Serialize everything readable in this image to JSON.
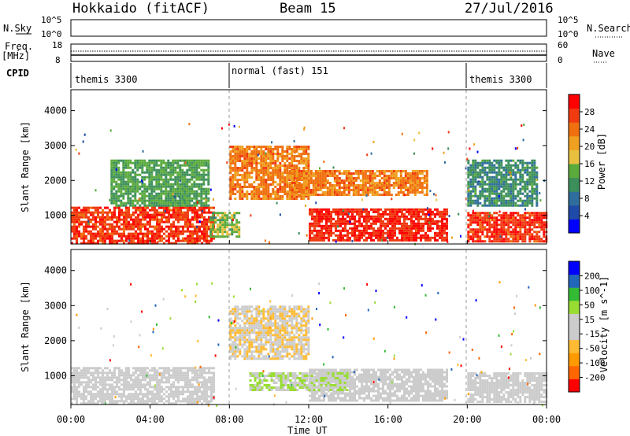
{
  "header": {
    "station": "Hokkaido (fitACF)",
    "beam": "Beam 15",
    "date": "27/Jul/2016"
  },
  "left_labels": {
    "nsky": "N.Sky",
    "freq": "Freq.",
    "freq_unit": "[MHz]",
    "cpid": "CPID"
  },
  "right_labels": {
    "nsearch": "N.Search",
    "nave": "Nave"
  },
  "noise_axis": {
    "left_ticks": [
      "10^5",
      "10^0"
    ],
    "right_ticks": [
      "10^5",
      "10^0"
    ]
  },
  "freq_axis": {
    "left_ticks": [
      "18",
      "8"
    ],
    "right_ticks": [
      "60",
      "0"
    ]
  },
  "cpid_segments": [
    {
      "label": "themis 3300",
      "start": "00:00",
      "end": "08:00"
    },
    {
      "label": "normal (fast) 151",
      "start": "08:00",
      "end": "20:00"
    },
    {
      "label": "themis 3300",
      "start": "20:00",
      "end": "00:00"
    }
  ],
  "x_axis": {
    "ticks": [
      "00:00",
      "04:00",
      "08:00",
      "12:00",
      "16:00",
      "20:00",
      "00:00"
    ],
    "label": "Time UT"
  },
  "y_axis": {
    "label": "Slant Range [km]",
    "ticks": [
      "1000",
      "2000",
      "3000",
      "4000"
    ]
  },
  "colors": {
    "power": [
      "#0000ff",
      "#1f4aa8",
      "#2f6e9c",
      "#3c8f5a",
      "#5aaa3c",
      "#e8c040",
      "#f0a020",
      "#f07010",
      "#f03a10",
      "#ff0000"
    ],
    "velocity": [
      "#ff0000",
      "#ff6600",
      "#ff9900",
      "#ffbb33",
      "#cccccc",
      "#cccccc",
      "#99dd33",
      "#33bb33",
      "#2266bb",
      "#0000ff"
    ]
  },
  "chart_data": [
    {
      "type": "heatmap",
      "title": "",
      "xlabel": "Time UT",
      "ylabel": "Slant Range [km]",
      "xlim_hours": [
        0,
        24
      ],
      "ylim_km": [
        180,
        4600
      ],
      "colorbar": {
        "label": "Power [dB]",
        "ticks": [
          "4",
          "8",
          "12",
          "16",
          "20",
          "24",
          "28"
        ],
        "range": [
          0,
          30
        ]
      },
      "regions": [
        {
          "t0": 0.0,
          "t1": 7.2,
          "r0": 200,
          "r1": 1250,
          "value": 26
        },
        {
          "t0": 7.0,
          "t1": 8.5,
          "r0": 400,
          "r1": 1100,
          "value": 14
        },
        {
          "t0": 8.0,
          "t1": 12.0,
          "r0": 1500,
          "r1": 3000,
          "value": 22
        },
        {
          "t0": 12.0,
          "t1": 19.0,
          "r0": 300,
          "r1": 1200,
          "value": 27
        },
        {
          "t0": 11.0,
          "t1": 18.0,
          "r0": 1600,
          "r1": 2300,
          "value": 22
        },
        {
          "t0": 20.0,
          "t1": 24.0,
          "r0": 250,
          "r1": 1100,
          "value": 26
        },
        {
          "t0": 2.0,
          "t1": 7.0,
          "r0": 1300,
          "r1": 2600,
          "value": 12
        },
        {
          "t0": 20.0,
          "t1": 23.5,
          "r0": 1300,
          "r1": 2600,
          "value": 10
        }
      ]
    },
    {
      "type": "heatmap",
      "title": "",
      "xlabel": "Time UT",
      "ylabel": "Slant Range [km]",
      "xlim_hours": [
        0,
        24
      ],
      "ylim_km": [
        180,
        4600
      ],
      "colorbar": {
        "label": "Velocity [m s^-1]",
        "ticks": [
          "200",
          "100",
          "50",
          "15",
          "-15",
          "-50",
          "-100",
          "-200"
        ],
        "range": [
          -250,
          250
        ]
      },
      "regions": [
        {
          "t0": 0.0,
          "t1": 7.2,
          "r0": 200,
          "r1": 1250,
          "value": 0
        },
        {
          "t0": 8.0,
          "t1": 12.0,
          "r0": 1500,
          "r1": 3000,
          "value": -40
        },
        {
          "t0": 12.0,
          "t1": 19.0,
          "r0": 300,
          "r1": 1200,
          "value": 5
        },
        {
          "t0": 9.0,
          "t1": 14.0,
          "r0": 600,
          "r1": 1100,
          "value": 40
        },
        {
          "t0": 20.0,
          "t1": 24.0,
          "r0": 250,
          "r1": 1100,
          "value": 0
        }
      ]
    }
  ]
}
